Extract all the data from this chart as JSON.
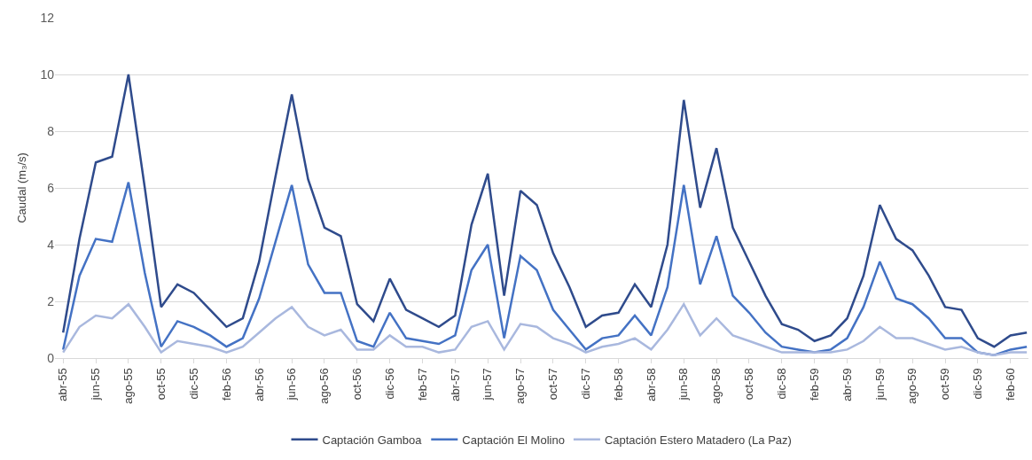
{
  "chart_data": {
    "type": "line",
    "ylabel": "Caudal (m₃/s)",
    "categories": [
      "abr-55",
      null,
      "jun-55",
      null,
      "ago-55",
      null,
      "oct-55",
      null,
      "dic-55",
      null,
      "feb-56",
      null,
      "abr-56",
      null,
      "jun-56",
      null,
      "ago-56",
      null,
      "oct-56",
      null,
      "dic-56",
      null,
      "feb-57",
      null,
      "abr-57",
      null,
      "jun-57",
      null,
      "ago-57",
      null,
      "oct-57",
      null,
      "dic-57",
      null,
      "feb-58",
      null,
      "abr-58",
      null,
      "jun-58",
      null,
      "ago-58",
      null,
      "oct-58",
      null,
      "dic-58",
      null,
      "feb-59",
      null,
      "abr-59",
      null,
      "jun-59",
      null,
      "ago-59",
      null,
      "oct-59",
      null,
      "dic-59",
      null,
      "feb-60",
      null
    ],
    "series": [
      {
        "name": "Captación Gamboa",
        "color": "#2f4b8c",
        "values": [
          0.9,
          4.2,
          6.9,
          7.1,
          10.0,
          6.0,
          1.8,
          2.6,
          2.3,
          1.7,
          1.1,
          1.4,
          3.4,
          6.4,
          9.3,
          6.3,
          4.6,
          4.3,
          1.9,
          1.3,
          2.8,
          1.7,
          1.4,
          1.1,
          1.5,
          4.7,
          6.5,
          2.2,
          5.9,
          5.4,
          3.7,
          2.5,
          1.1,
          1.5,
          1.6,
          2.6,
          1.8,
          4.0,
          9.1,
          5.3,
          7.4,
          4.6,
          3.4,
          2.2,
          1.2,
          1.0,
          0.6,
          0.8,
          1.4,
          2.9,
          5.4,
          4.2,
          3.8,
          2.9,
          1.8,
          1.7,
          0.7,
          0.4,
          0.8,
          0.9
        ]
      },
      {
        "name": "Captación El Molino",
        "color": "#4472c4",
        "values": [
          0.3,
          2.9,
          4.2,
          4.1,
          6.2,
          3.0,
          0.4,
          1.3,
          1.1,
          0.8,
          0.4,
          0.7,
          2.1,
          4.1,
          6.1,
          3.3,
          2.3,
          2.3,
          0.6,
          0.4,
          1.6,
          0.7,
          0.6,
          0.5,
          0.8,
          3.1,
          4.0,
          0.7,
          3.6,
          3.1,
          1.7,
          1.0,
          0.3,
          0.7,
          0.8,
          1.5,
          0.8,
          2.5,
          6.1,
          2.6,
          4.3,
          2.2,
          1.6,
          0.9,
          0.4,
          0.3,
          0.2,
          0.3,
          0.7,
          1.8,
          3.4,
          2.1,
          1.9,
          1.4,
          0.7,
          0.7,
          0.2,
          0.1,
          0.3,
          0.4
        ]
      },
      {
        "name": "Captación Estero Matadero (La Paz)",
        "color": "#a9b8de",
        "values": [
          0.2,
          1.1,
          1.5,
          1.4,
          1.9,
          1.1,
          0.2,
          0.6,
          0.5,
          0.4,
          0.2,
          0.4,
          0.9,
          1.4,
          1.8,
          1.1,
          0.8,
          1.0,
          0.3,
          0.3,
          0.8,
          0.4,
          0.4,
          0.2,
          0.3,
          1.1,
          1.3,
          0.3,
          1.2,
          1.1,
          0.7,
          0.5,
          0.2,
          0.4,
          0.5,
          0.7,
          0.3,
          1.0,
          1.9,
          0.8,
          1.4,
          0.8,
          0.6,
          0.4,
          0.2,
          0.2,
          0.2,
          0.2,
          0.3,
          0.6,
          1.1,
          0.7,
          0.7,
          0.5,
          0.3,
          0.4,
          0.2,
          0.1,
          0.2,
          0.2
        ]
      }
    ],
    "ylim": [
      0,
      12
    ],
    "yticks": [
      0,
      2,
      4,
      6,
      8,
      10,
      12
    ],
    "grid": "y",
    "legend": "bottom",
    "marker": "none",
    "line_style": "solid"
  }
}
